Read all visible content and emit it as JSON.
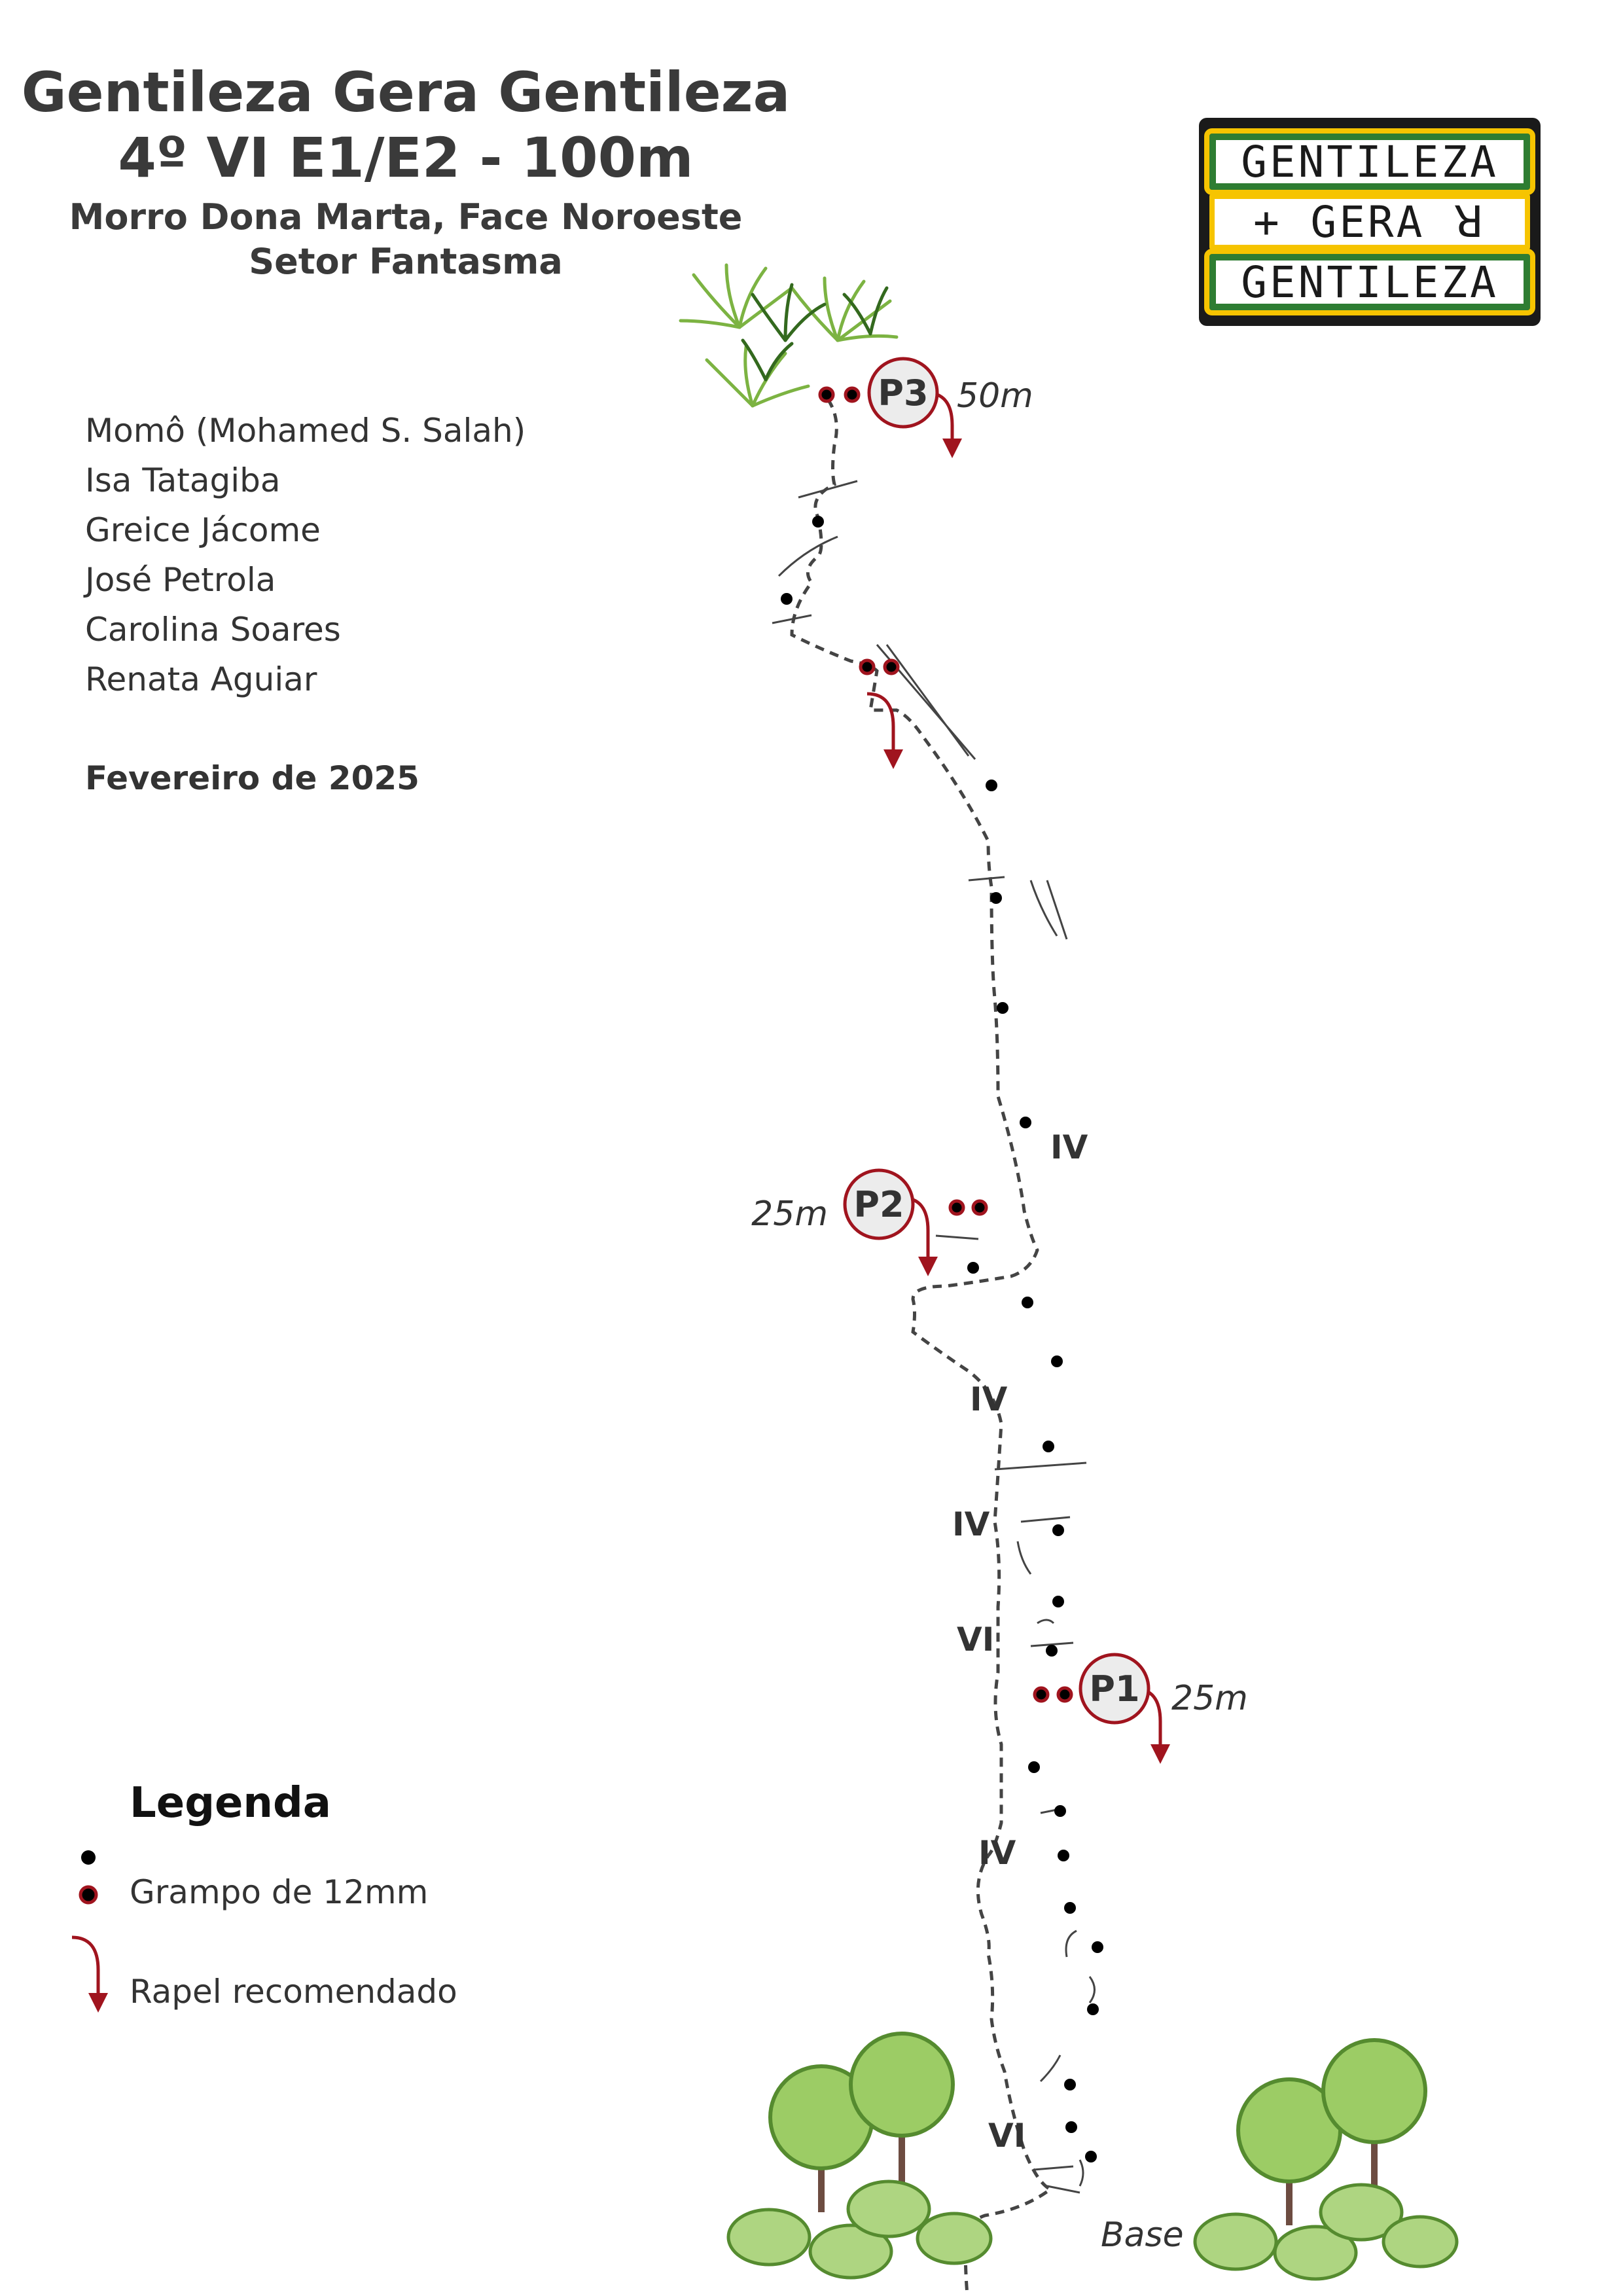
{
  "header": {
    "route_name": "Gentileza Gera Gentileza",
    "grade_line": "4º VI E1/E2 - 100m",
    "location": "Morro Dona Marta, Face Noroeste",
    "sector": "Setor Fantasma"
  },
  "authors": [
    "Momô (Mohamed S. Salah)",
    "Isa Tatagiba",
    "Greice Jácome",
    "José Petrola",
    "Carolina Soares",
    "Renata Aguiar"
  ],
  "date": "Fevereiro de 2025",
  "logo": {
    "line1": "GENTILEZA",
    "line2": "+ GERA ꓤ",
    "line3": "GENTILEZA",
    "colors": {
      "green": "#2e7d32",
      "yellow": "#f6c400",
      "frame": "#1a1a1a"
    }
  },
  "topo": {
    "anchors": [
      {
        "label": "P3",
        "length": "50m"
      },
      {
        "label": "P2",
        "length": "25m"
      },
      {
        "label": "P1",
        "length": "25m"
      }
    ],
    "grades": [
      "IV",
      "IV",
      "IV",
      "VI",
      "IV",
      "VI"
    ],
    "base_label": "Base",
    "colors": {
      "rappel": "#a0141e",
      "bolt": "#000000",
      "route": "#444444"
    }
  },
  "legend": {
    "title": "Legenda",
    "items": [
      {
        "icon": "bolt-icon",
        "label": "Grampo de 12mm"
      },
      {
        "icon": "rappel-arrow-icon",
        "label": "Rapel recomendado"
      }
    ]
  }
}
